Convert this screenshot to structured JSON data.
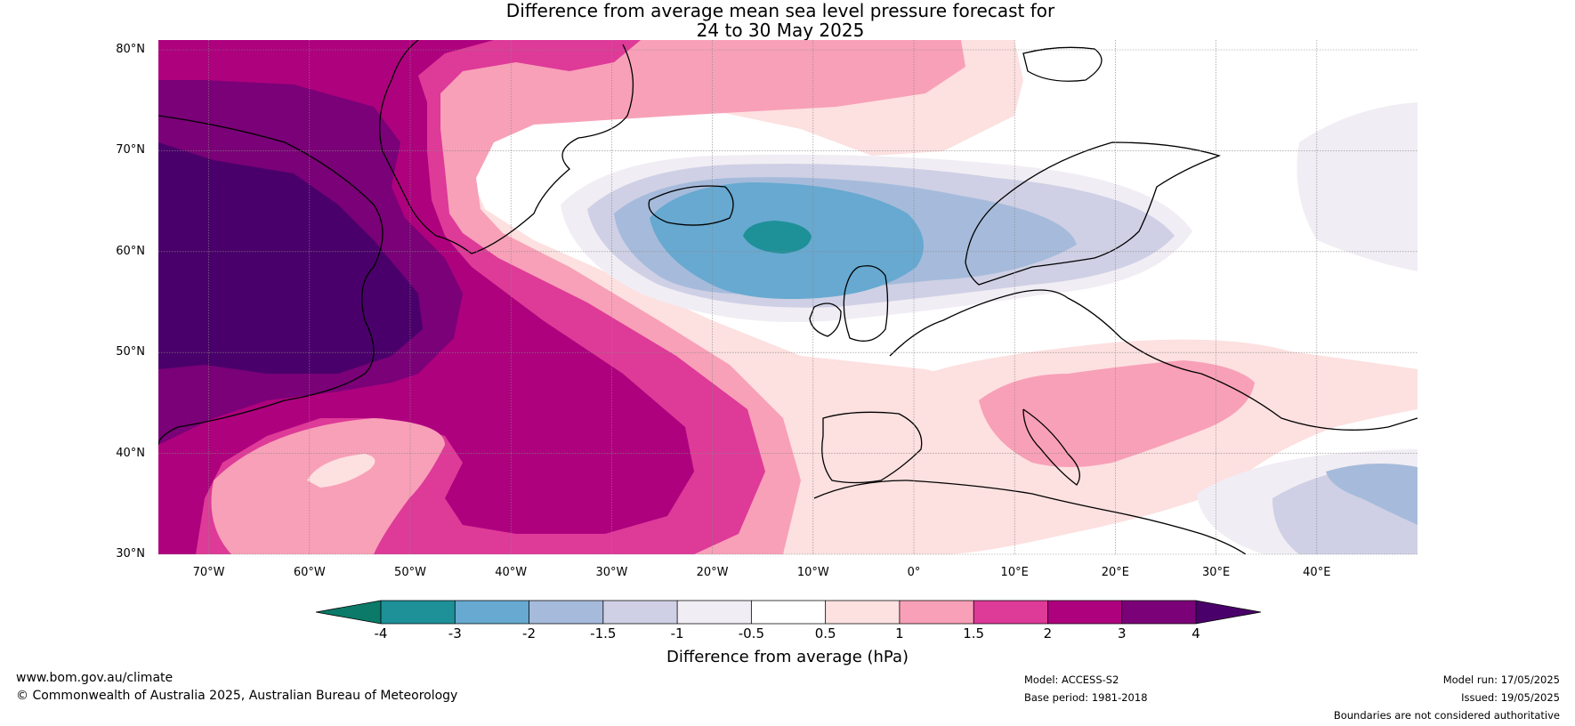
{
  "title_line1": "Difference from average mean sea level pressure forecast for",
  "title_line2": "24 to 30 May 2025",
  "map": {
    "extent": {
      "lon_min": -75,
      "lon_max": 50,
      "lat_min": 30,
      "lat_max": 81
    },
    "lat_labels": [
      "80°N",
      "70°N",
      "60°N",
      "50°N",
      "40°N",
      "30°N"
    ],
    "lat_values": [
      80,
      70,
      60,
      50,
      40,
      30
    ],
    "lon_labels": [
      "70°W",
      "60°W",
      "50°W",
      "40°W",
      "30°W",
      "20°W",
      "10°W",
      "0°",
      "10°E",
      "20°E",
      "30°E",
      "40°E"
    ],
    "lon_values": [
      -70,
      -60,
      -50,
      -40,
      -30,
      -20,
      -10,
      0,
      10,
      20,
      30,
      40
    ],
    "gridlines": true
  },
  "colorbar": {
    "label": "Difference from average (hPa)",
    "tick_labels": [
      "-4",
      "-3",
      "-2",
      "-1.5",
      "-1",
      "-0.5",
      "0.5",
      "1",
      "1.5",
      "2",
      "3",
      "4"
    ],
    "bins": [
      {
        "range": "< -4",
        "color": "#0b7a68"
      },
      {
        "range": "-4 to -3",
        "color": "#1e9098"
      },
      {
        "range": "-3 to -2",
        "color": "#67a9d0"
      },
      {
        "range": "-2 to -1.5",
        "color": "#a6bbdb"
      },
      {
        "range": "-1.5 to -1",
        "color": "#cfd0e5"
      },
      {
        "range": "-1 to -0.5",
        "color": "#f1edf4"
      },
      {
        "range": "-0.5 to 0.5",
        "color": "#ffffff"
      },
      {
        "range": "0.5 to 1",
        "color": "#fde0e0"
      },
      {
        "range": "1 to 1.5",
        "color": "#f8a0b8"
      },
      {
        "range": "1.5 to 2",
        "color": "#de3a98"
      },
      {
        "range": "2 to 3",
        "color": "#ae017e"
      },
      {
        "range": "3 to 4",
        "color": "#7a0177"
      },
      {
        "range": "> 4",
        "color": "#4a006a"
      }
    ]
  },
  "footer": {
    "website": "www.bom.gov.au/climate",
    "copyright": "© Commonwealth of Australia 2025, Australian Bureau of Meteorology",
    "model": "Model: ACCESS-S2",
    "base_period": "Base period: 1981-2018",
    "model_run": "Model run: 17/05/2025",
    "issued": "Issued: 19/05/2025",
    "disclaimer": "Boundaries are not considered authoritative"
  }
}
